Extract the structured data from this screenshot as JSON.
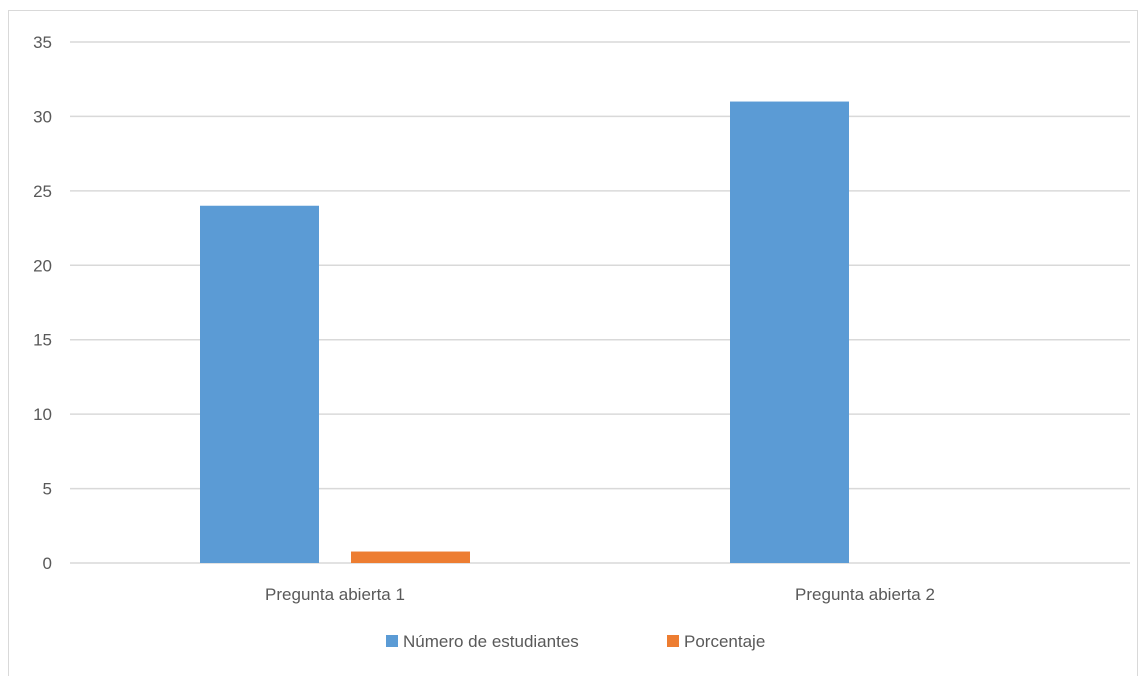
{
  "chart_data": {
    "type": "bar",
    "categories": [
      "Pregunta abierta 1",
      "Pregunta abierta 2"
    ],
    "series": [
      {
        "name": "Número de estudiantes",
        "color": "#5b9bd5",
        "values": [
          24,
          31
        ]
      },
      {
        "name": "Porcentaje",
        "color": "#ed7d31",
        "values": [
          0.77,
          0
        ]
      }
    ],
    "yticks": [
      "0",
      "5",
      "10",
      "15",
      "20",
      "25",
      "30",
      "35"
    ],
    "ylim": [
      0,
      35
    ],
    "grid": true,
    "legend_position": "bottom"
  }
}
